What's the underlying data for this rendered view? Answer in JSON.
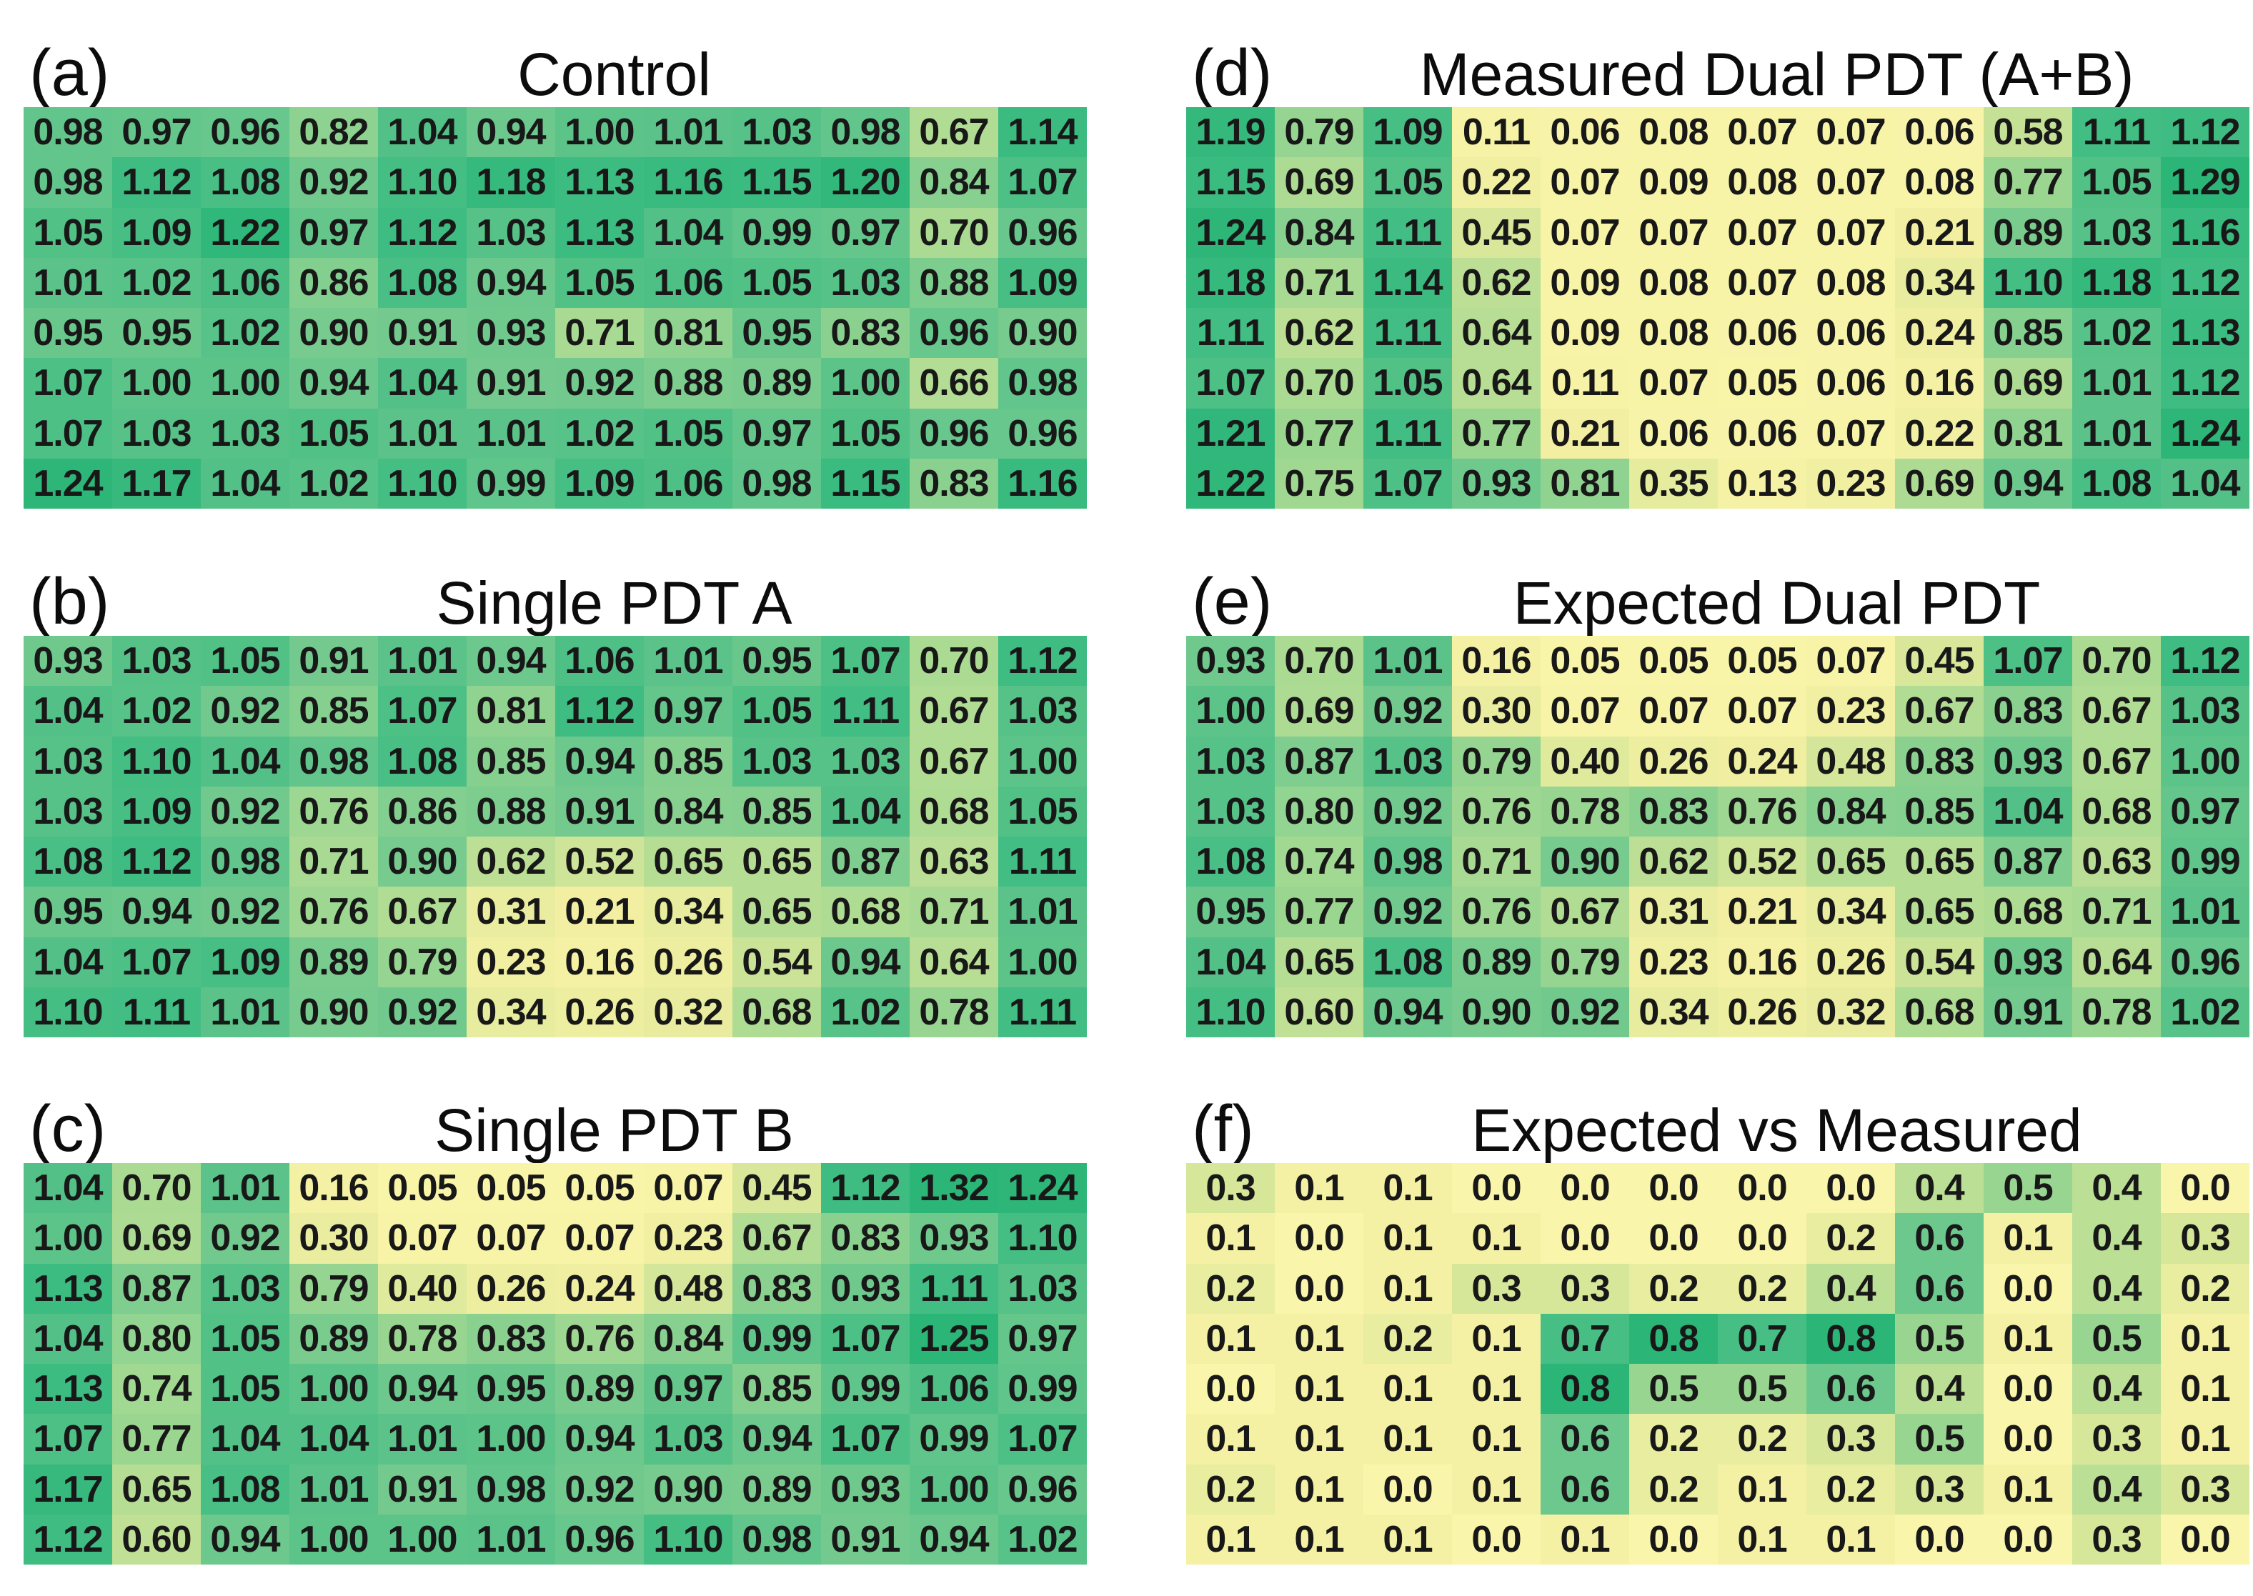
{
  "figure": {
    "background": "#ffffff",
    "text_color": "#181818"
  },
  "colors": {
    "ramp": [
      {
        "t": 0.0,
        "hex": "#f9f5aa"
      },
      {
        "t": 0.15,
        "hex": "#f4f0a3"
      },
      {
        "t": 0.3,
        "hex": "#e4eb9d"
      },
      {
        "t": 0.45,
        "hex": "#c8e296"
      },
      {
        "t": 0.6,
        "hex": "#a0d892"
      },
      {
        "t": 0.75,
        "hex": "#6dc88d"
      },
      {
        "t": 0.9,
        "hex": "#3ebc82"
      },
      {
        "t": 1.0,
        "hex": "#2bb577"
      }
    ]
  },
  "chart_data": [
    {
      "type": "heatmap",
      "panel_label": "(a)",
      "title": "Control",
      "rows": 8,
      "cols": 12,
      "value_decimals": 2,
      "color_scale": {
        "vmin": 0,
        "vmax": 1.25,
        "low": "#f9f5aa",
        "high": "#2bb577"
      },
      "values": [
        [
          0.98,
          0.97,
          0.96,
          0.82,
          1.04,
          0.94,
          1.0,
          1.01,
          1.03,
          0.98,
          0.67,
          1.14
        ],
        [
          0.98,
          1.12,
          1.08,
          0.92,
          1.1,
          1.18,
          1.13,
          1.16,
          1.15,
          1.2,
          0.84,
          1.07
        ],
        [
          1.05,
          1.09,
          1.22,
          0.97,
          1.12,
          1.03,
          1.13,
          1.04,
          0.99,
          0.97,
          0.7,
          0.96
        ],
        [
          1.01,
          1.02,
          1.06,
          0.86,
          1.08,
          0.94,
          1.05,
          1.06,
          1.05,
          1.03,
          0.88,
          1.09
        ],
        [
          0.95,
          0.95,
          1.02,
          0.9,
          0.91,
          0.93,
          0.71,
          0.81,
          0.95,
          0.83,
          0.96,
          0.9
        ],
        [
          1.07,
          1.0,
          1.0,
          0.94,
          1.04,
          0.91,
          0.92,
          0.88,
          0.89,
          1.0,
          0.66,
          0.98
        ],
        [
          1.07,
          1.03,
          1.03,
          1.05,
          1.01,
          1.01,
          1.02,
          1.05,
          0.97,
          1.05,
          0.96,
          0.96
        ],
        [
          1.24,
          1.17,
          1.04,
          1.02,
          1.1,
          0.99,
          1.09,
          1.06,
          0.98,
          1.15,
          0.83,
          1.16
        ]
      ]
    },
    {
      "type": "heatmap",
      "panel_label": "(b)",
      "title": "Single PDT A",
      "rows": 8,
      "cols": 12,
      "value_decimals": 2,
      "color_scale": {
        "vmin": 0,
        "vmax": 1.25,
        "low": "#f9f5aa",
        "high": "#2bb577"
      },
      "values": [
        [
          0.93,
          1.03,
          1.05,
          0.91,
          1.01,
          0.94,
          1.06,
          1.01,
          0.95,
          1.07,
          0.7,
          1.12
        ],
        [
          1.04,
          1.02,
          0.92,
          0.85,
          1.07,
          0.81,
          1.12,
          0.97,
          1.05,
          1.11,
          0.67,
          1.03
        ],
        [
          1.03,
          1.1,
          1.04,
          0.98,
          1.08,
          0.85,
          0.94,
          0.85,
          1.03,
          1.03,
          0.67,
          1.0
        ],
        [
          1.03,
          1.09,
          0.92,
          0.76,
          0.86,
          0.88,
          0.91,
          0.84,
          0.85,
          1.04,
          0.68,
          1.05
        ],
        [
          1.08,
          1.12,
          0.98,
          0.71,
          0.9,
          0.62,
          0.52,
          0.65,
          0.65,
          0.87,
          0.63,
          1.11
        ],
        [
          0.95,
          0.94,
          0.92,
          0.76,
          0.67,
          0.31,
          0.21,
          0.34,
          0.65,
          0.68,
          0.71,
          1.01
        ],
        [
          1.04,
          1.07,
          1.09,
          0.89,
          0.79,
          0.23,
          0.16,
          0.26,
          0.54,
          0.94,
          0.64,
          1.0
        ],
        [
          1.1,
          1.11,
          1.01,
          0.9,
          0.92,
          0.34,
          0.26,
          0.32,
          0.68,
          1.02,
          0.78,
          1.11
        ]
      ]
    },
    {
      "type": "heatmap",
      "panel_label": "(c)",
      "title": "Single PDT B",
      "rows": 8,
      "cols": 12,
      "value_decimals": 2,
      "color_scale": {
        "vmin": 0,
        "vmax": 1.25,
        "low": "#f9f5aa",
        "high": "#2bb577"
      },
      "values": [
        [
          1.04,
          0.7,
          1.01,
          0.16,
          0.05,
          0.05,
          0.05,
          0.07,
          0.45,
          1.12,
          1.32,
          1.24
        ],
        [
          1.0,
          0.69,
          0.92,
          0.3,
          0.07,
          0.07,
          0.07,
          0.23,
          0.67,
          0.83,
          0.93,
          1.1
        ],
        [
          1.13,
          0.87,
          1.03,
          0.79,
          0.4,
          0.26,
          0.24,
          0.48,
          0.83,
          0.93,
          1.11,
          1.03
        ],
        [
          1.04,
          0.8,
          1.05,
          0.89,
          0.78,
          0.83,
          0.76,
          0.84,
          0.99,
          1.07,
          1.25,
          0.97
        ],
        [
          1.13,
          0.74,
          1.05,
          1.0,
          0.94,
          0.95,
          0.89,
          0.97,
          0.85,
          0.99,
          1.06,
          0.99
        ],
        [
          1.07,
          0.77,
          1.04,
          1.04,
          1.01,
          1.0,
          0.94,
          1.03,
          0.94,
          1.07,
          0.99,
          1.07
        ],
        [
          1.17,
          0.65,
          1.08,
          1.01,
          0.91,
          0.98,
          0.92,
          0.9,
          0.89,
          0.93,
          1.0,
          0.96
        ],
        [
          1.12,
          0.6,
          0.94,
          1.0,
          1.0,
          1.01,
          0.96,
          1.1,
          0.98,
          0.91,
          0.94,
          1.02
        ]
      ]
    },
    {
      "type": "heatmap",
      "panel_label": "(d)",
      "title": "Measured Dual PDT (A+B)",
      "rows": 8,
      "cols": 12,
      "value_decimals": 2,
      "color_scale": {
        "vmin": 0,
        "vmax": 1.25,
        "low": "#f9f5aa",
        "high": "#2bb577"
      },
      "values": [
        [
          1.19,
          0.79,
          1.09,
          0.11,
          0.06,
          0.08,
          0.07,
          0.07,
          0.06,
          0.58,
          1.11,
          1.12
        ],
        [
          1.15,
          0.69,
          1.05,
          0.22,
          0.07,
          0.09,
          0.08,
          0.07,
          0.08,
          0.77,
          1.05,
          1.29
        ],
        [
          1.24,
          0.84,
          1.11,
          0.45,
          0.07,
          0.07,
          0.07,
          0.07,
          0.21,
          0.89,
          1.03,
          1.16
        ],
        [
          1.18,
          0.71,
          1.14,
          0.62,
          0.09,
          0.08,
          0.07,
          0.08,
          0.34,
          1.1,
          1.18,
          1.12
        ],
        [
          1.11,
          0.62,
          1.11,
          0.64,
          0.09,
          0.08,
          0.06,
          0.06,
          0.24,
          0.85,
          1.02,
          1.13
        ],
        [
          1.07,
          0.7,
          1.05,
          0.64,
          0.11,
          0.07,
          0.05,
          0.06,
          0.16,
          0.69,
          1.01,
          1.12
        ],
        [
          1.21,
          0.77,
          1.11,
          0.77,
          0.21,
          0.06,
          0.06,
          0.07,
          0.22,
          0.81,
          1.01,
          1.24
        ],
        [
          1.22,
          0.75,
          1.07,
          0.93,
          0.81,
          0.35,
          0.13,
          0.23,
          0.69,
          0.94,
          1.08,
          1.04
        ]
      ]
    },
    {
      "type": "heatmap",
      "panel_label": "(e)",
      "title": "Expected Dual PDT",
      "rows": 8,
      "cols": 12,
      "value_decimals": 2,
      "color_scale": {
        "vmin": 0,
        "vmax": 1.25,
        "low": "#f9f5aa",
        "high": "#2bb577"
      },
      "values": [
        [
          0.93,
          0.7,
          1.01,
          0.16,
          0.05,
          0.05,
          0.05,
          0.07,
          0.45,
          1.07,
          0.7,
          1.12
        ],
        [
          1.0,
          0.69,
          0.92,
          0.3,
          0.07,
          0.07,
          0.07,
          0.23,
          0.67,
          0.83,
          0.67,
          1.03
        ],
        [
          1.03,
          0.87,
          1.03,
          0.79,
          0.4,
          0.26,
          0.24,
          0.48,
          0.83,
          0.93,
          0.67,
          1.0
        ],
        [
          1.03,
          0.8,
          0.92,
          0.76,
          0.78,
          0.83,
          0.76,
          0.84,
          0.85,
          1.04,
          0.68,
          0.97
        ],
        [
          1.08,
          0.74,
          0.98,
          0.71,
          0.9,
          0.62,
          0.52,
          0.65,
          0.65,
          0.87,
          0.63,
          0.99
        ],
        [
          0.95,
          0.77,
          0.92,
          0.76,
          0.67,
          0.31,
          0.21,
          0.34,
          0.65,
          0.68,
          0.71,
          1.01
        ],
        [
          1.04,
          0.65,
          1.08,
          0.89,
          0.79,
          0.23,
          0.16,
          0.26,
          0.54,
          0.93,
          0.64,
          0.96
        ],
        [
          1.1,
          0.6,
          0.94,
          0.9,
          0.92,
          0.34,
          0.26,
          0.32,
          0.68,
          0.91,
          0.78,
          1.02
        ]
      ]
    },
    {
      "type": "heatmap",
      "panel_label": "(f)",
      "title": "Expected vs Measured",
      "rows": 8,
      "cols": 12,
      "value_decimals": 1,
      "color_scale": {
        "vmin": 0,
        "vmax": 0.8,
        "low": "#f9f5aa",
        "high": "#2bb577"
      },
      "values": [
        [
          0.3,
          0.1,
          0.1,
          0.0,
          0.0,
          0.0,
          0.0,
          0.0,
          0.4,
          0.5,
          0.4,
          0.0
        ],
        [
          0.1,
          0.0,
          0.1,
          0.1,
          0.0,
          0.0,
          0.0,
          0.2,
          0.6,
          0.1,
          0.4,
          0.3
        ],
        [
          0.2,
          0.0,
          0.1,
          0.3,
          0.3,
          0.2,
          0.2,
          0.4,
          0.6,
          0.0,
          0.4,
          0.2
        ],
        [
          0.1,
          0.1,
          0.2,
          0.1,
          0.7,
          0.8,
          0.7,
          0.8,
          0.5,
          0.1,
          0.5,
          0.1
        ],
        [
          0.0,
          0.1,
          0.1,
          0.1,
          0.8,
          0.5,
          0.5,
          0.6,
          0.4,
          0.0,
          0.4,
          0.1
        ],
        [
          0.1,
          0.1,
          0.1,
          0.1,
          0.6,
          0.2,
          0.2,
          0.3,
          0.5,
          0.0,
          0.3,
          0.1
        ],
        [
          0.2,
          0.1,
          0.0,
          0.1,
          0.6,
          0.2,
          0.1,
          0.2,
          0.3,
          0.1,
          0.4,
          0.3
        ],
        [
          0.1,
          0.1,
          0.1,
          0.0,
          0.1,
          0.0,
          0.1,
          0.1,
          0.0,
          0.0,
          0.3,
          0.0
        ]
      ]
    }
  ]
}
